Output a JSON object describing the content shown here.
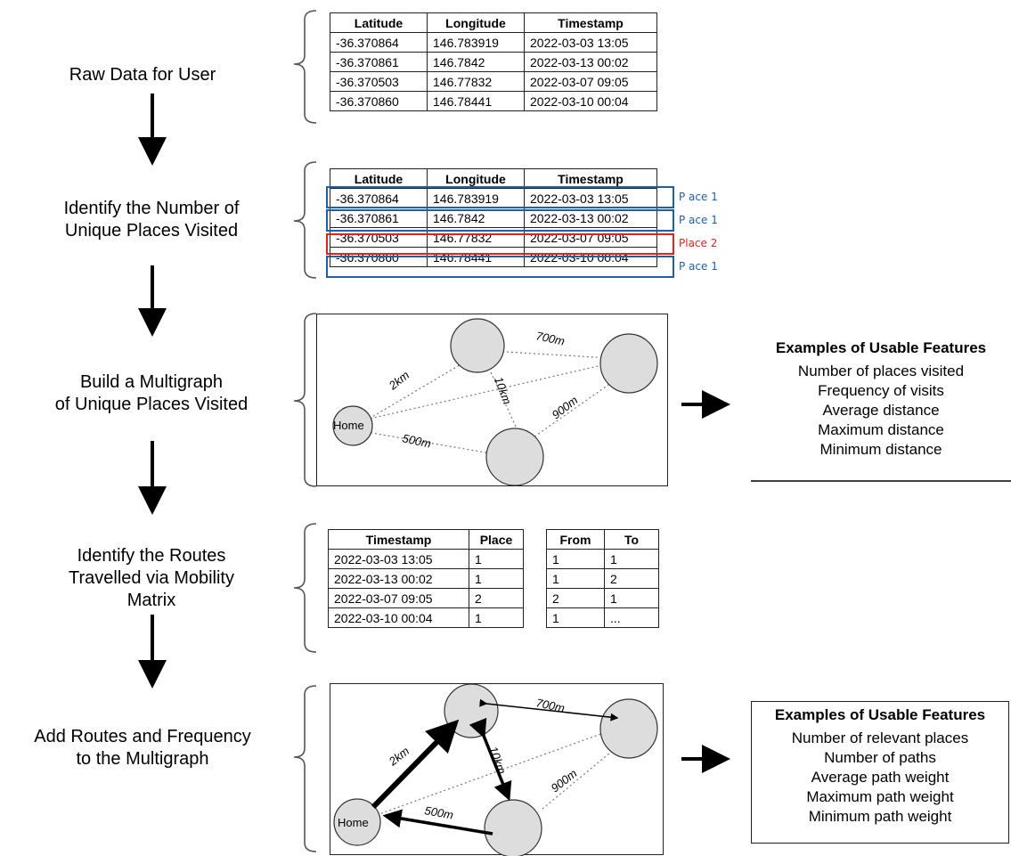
{
  "steps": {
    "s1": [
      "Raw Data for User"
    ],
    "s2": [
      "Identify the Number of",
      "Unique Places Visited"
    ],
    "s3": [
      "Build a Multigraph",
      "of Unique Places Visited"
    ],
    "s4": [
      "Identify the Routes",
      "Travelled via Mobility",
      "Matrix"
    ],
    "s5": [
      "Add Routes and Frequency",
      "to the Multigraph"
    ]
  },
  "raw_table": {
    "headers": [
      "Latitude",
      "Longitude",
      "Timestamp"
    ],
    "rows": [
      [
        "-36.370864",
        "146.783919",
        "2022-03-03 13:05"
      ],
      [
        "-36.370861",
        "146.7842",
        "2022-03-13 00:02"
      ],
      [
        "-36.370503",
        "146.77832",
        "2022-03-07 09:05"
      ],
      [
        "-36.370860",
        "146.78441",
        "2022-03-10 00:04"
      ]
    ]
  },
  "places_table": {
    "headers": [
      "Latitude",
      "Longitude",
      "Timestamp"
    ],
    "rows": [
      [
        "-36.370864",
        "146.783919",
        "2022-03-03 13:05"
      ],
      [
        "-36.370861",
        "146.7842",
        "2022-03-13 00:02"
      ],
      [
        "-36.370503",
        "146.77832",
        "2022-03-07 09:05"
      ],
      [
        "-36.370860",
        "146.78441",
        "2022-03-10 00:04"
      ]
    ],
    "place_labels": [
      "P ace 1",
      "P ace 1",
      "Place 2",
      "P ace 1"
    ],
    "colors": {
      "place1": "#1f5fa8",
      "place2": "#d9261c"
    }
  },
  "graph": {
    "home_label": "Home",
    "edge_labels": {
      "e2km": "2km",
      "e700m": "700m",
      "e10km": "10km",
      "e900m": "900m",
      "e500m": "500m"
    }
  },
  "features1": {
    "title": "Examples of Usable Features",
    "items": [
      "Number of places visited",
      "Frequency of visits",
      "Average distance",
      "Maximum distance",
      "Minimum distance"
    ]
  },
  "timestamp_table": {
    "headers": [
      "Timestamp",
      "Place"
    ],
    "rows": [
      [
        "2022-03-03 13:05",
        "1"
      ],
      [
        "2022-03-13 00:02",
        "1"
      ],
      [
        "2022-03-07 09:05",
        "2"
      ],
      [
        "2022-03-10 00:04",
        "1"
      ]
    ]
  },
  "route_table": {
    "headers": [
      "From",
      "To"
    ],
    "rows": [
      [
        "1",
        "1"
      ],
      [
        "1",
        "2"
      ],
      [
        "2",
        "1"
      ],
      [
        "1",
        "..."
      ]
    ]
  },
  "features2": {
    "title": "Examples of Usable Features",
    "items": [
      "Number of relevant places",
      "Number of paths",
      "Average path weight",
      "Maximum path weight",
      "Minimum path weight"
    ]
  }
}
